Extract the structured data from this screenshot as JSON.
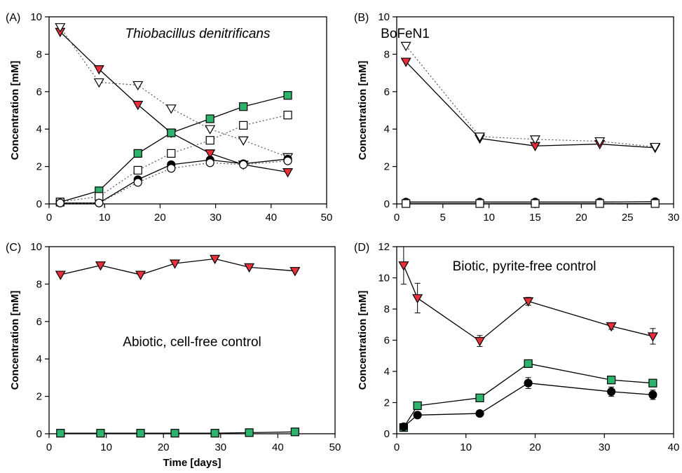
{
  "chart_data": [
    {
      "type": "line",
      "panel_label": "(A)",
      "title": "Thiobacillus denitrificans",
      "title_style": "italic",
      "xlabel": "",
      "ylabel": "Concentration [mM]",
      "xlim": [
        0,
        50
      ],
      "ylim": [
        0,
        10
      ],
      "xticks": [
        0,
        10,
        20,
        30,
        40,
        50
      ],
      "yticks": [
        0,
        2,
        4,
        6,
        8,
        10
      ],
      "series": [
        {
          "marker": "triangle-down",
          "filled": true,
          "color": "#e8303a",
          "line": "solid",
          "x": [
            2,
            9,
            16,
            22,
            29,
            35,
            43
          ],
          "y": [
            9.2,
            7.2,
            5.3,
            3.8,
            2.7,
            2.1,
            1.7
          ]
        },
        {
          "marker": "triangle-down",
          "filled": false,
          "color": "#ffffff",
          "line": "dotted",
          "x": [
            2,
            9,
            16,
            22,
            29,
            35,
            43
          ],
          "y": [
            9.45,
            6.5,
            6.35,
            5.1,
            4.0,
            3.4,
            2.5
          ]
        },
        {
          "marker": "square",
          "filled": true,
          "color": "#2db36b",
          "line": "solid",
          "x": [
            2,
            9,
            16,
            22,
            29,
            35,
            43
          ],
          "y": [
            0.1,
            0.7,
            2.7,
            3.8,
            4.55,
            5.2,
            5.8
          ]
        },
        {
          "marker": "square",
          "filled": false,
          "color": "#ffffff",
          "line": "dotted",
          "x": [
            2,
            9,
            16,
            22,
            29,
            35,
            43
          ],
          "y": [
            0.1,
            0.4,
            1.8,
            2.7,
            3.4,
            4.2,
            4.75
          ]
        },
        {
          "marker": "circle",
          "filled": true,
          "color": "#000000",
          "line": "solid",
          "x": [
            2,
            9,
            16,
            22,
            29,
            35,
            43
          ],
          "y": [
            0.05,
            0.05,
            1.3,
            2.1,
            2.35,
            2.15,
            2.4
          ]
        },
        {
          "marker": "circle",
          "filled": false,
          "color": "#ffffff",
          "line": "dotted",
          "x": [
            2,
            9,
            16,
            22,
            29,
            35,
            43
          ],
          "y": [
            0.05,
            0.05,
            1.15,
            1.9,
            2.2,
            2.1,
            2.3
          ]
        }
      ]
    },
    {
      "type": "line",
      "panel_label": "(B)",
      "title": "BoFeN1",
      "title_style": "normal",
      "xlabel": "",
      "ylabel": "Concentration [mM]",
      "xlim": [
        0,
        30
      ],
      "ylim": [
        0,
        10
      ],
      "xticks": [
        0,
        5,
        10,
        15,
        20,
        25,
        30
      ],
      "yticks": [
        0,
        2,
        4,
        6,
        8,
        10
      ],
      "series": [
        {
          "marker": "triangle-down",
          "filled": true,
          "color": "#e8303a",
          "line": "solid",
          "x": [
            1,
            9,
            15,
            22,
            28
          ],
          "y": [
            7.6,
            3.5,
            3.1,
            3.2,
            3.0
          ]
        },
        {
          "marker": "triangle-down",
          "filled": false,
          "color": "#ffffff",
          "line": "dotted",
          "x": [
            1,
            9,
            15,
            22,
            28
          ],
          "y": [
            8.45,
            3.6,
            3.45,
            3.35,
            3.05
          ]
        },
        {
          "marker": "circle",
          "filled": true,
          "color": "#000000",
          "line": "solid",
          "x": [
            1,
            9,
            15,
            22,
            28
          ],
          "y": [
            0.1,
            0.1,
            0.1,
            0.1,
            0.12
          ]
        },
        {
          "marker": "square",
          "filled": false,
          "color": "#ffffff",
          "line": "solid",
          "x": [
            1,
            9,
            15,
            22,
            28
          ],
          "y": [
            0.02,
            0.02,
            0.02,
            0.02,
            0.02
          ]
        }
      ]
    },
    {
      "type": "line",
      "panel_label": "(C)",
      "title": "Abiotic, cell-free control",
      "title_style": "normal",
      "xlabel": "Time [days]",
      "ylabel": "Concentration [mM]",
      "xlim": [
        0,
        50
      ],
      "ylim": [
        0,
        10
      ],
      "xticks": [
        0,
        10,
        20,
        30,
        40,
        50
      ],
      "yticks": [
        0,
        2,
        4,
        6,
        8,
        10
      ],
      "series": [
        {
          "marker": "triangle-down",
          "filled": true,
          "color": "#e8303a",
          "line": "solid",
          "x": [
            2,
            9,
            16,
            22,
            29,
            35,
            43
          ],
          "y": [
            8.5,
            9.0,
            8.5,
            9.1,
            9.35,
            8.9,
            8.7
          ]
        },
        {
          "marker": "square",
          "filled": true,
          "color": "#2db36b",
          "line": "solid",
          "x": [
            2,
            9,
            16,
            22,
            29,
            35,
            43
          ],
          "y": [
            0.03,
            0.03,
            0.03,
            0.03,
            0.03,
            0.06,
            0.1
          ]
        }
      ]
    },
    {
      "type": "line",
      "panel_label": "(D)",
      "title": "Biotic, pyrite-free control",
      "title_style": "normal",
      "xlabel": "",
      "ylabel": "Concentration [mM]",
      "xlim": [
        0,
        40
      ],
      "ylim": [
        0,
        12
      ],
      "xticks": [
        0,
        10,
        20,
        30,
        40
      ],
      "yticks": [
        0,
        2,
        4,
        6,
        8,
        10,
        12
      ],
      "series": [
        {
          "marker": "triangle-down",
          "filled": true,
          "color": "#e8303a",
          "line": "solid",
          "x": [
            1,
            3,
            12,
            19,
            31,
            37
          ],
          "y": [
            10.8,
            8.7,
            5.95,
            8.5,
            6.9,
            6.25
          ],
          "err": [
            1.2,
            0.95,
            0.35,
            0.25,
            0.2,
            0.5
          ]
        },
        {
          "marker": "square",
          "filled": true,
          "color": "#2db36b",
          "line": "solid",
          "x": [
            1,
            3,
            12,
            19,
            31,
            37
          ],
          "y": [
            0.4,
            1.8,
            2.3,
            4.5,
            3.45,
            3.25
          ],
          "err": [
            0.05,
            0.1,
            0.1,
            0.15,
            0.1,
            0.1
          ]
        },
        {
          "marker": "circle",
          "filled": true,
          "color": "#000000",
          "line": "solid",
          "x": [
            1,
            3,
            12,
            19,
            31,
            37
          ],
          "y": [
            0.45,
            1.2,
            1.3,
            3.25,
            2.7,
            2.5
          ],
          "err": [
            0.05,
            0.1,
            0.15,
            0.35,
            0.3,
            0.3
          ]
        }
      ]
    }
  ]
}
